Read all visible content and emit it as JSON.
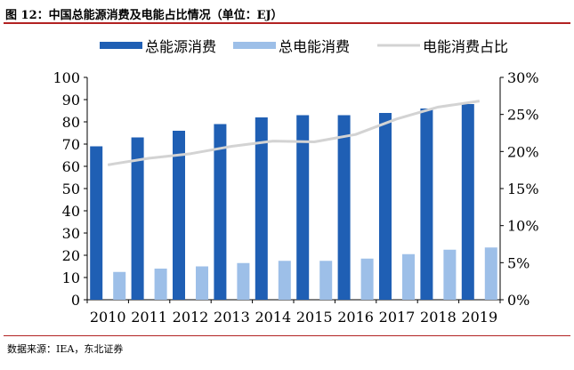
{
  "figure": {
    "title": "图 12：中国总能源消费及电能占比情况（单位：EJ）",
    "source": "数据来源：IEA，东北证券"
  },
  "chart_data": {
    "type": "bar",
    "categories": [
      "2010",
      "2011",
      "2012",
      "2013",
      "2014",
      "2015",
      "2016",
      "2017",
      "2018",
      "2019"
    ],
    "series": [
      {
        "name": "总能源消费",
        "type": "bar",
        "axis": "left",
        "color": "#1f5fb4",
        "values": [
          69,
          73,
          76,
          79,
          82,
          83,
          83,
          84,
          86,
          88
        ]
      },
      {
        "name": "总电能消费",
        "type": "bar",
        "axis": "left",
        "color": "#9dbfe8",
        "values": [
          12.5,
          14,
          15,
          16.5,
          17.5,
          17.5,
          18.5,
          20.5,
          22.5,
          23.5
        ]
      },
      {
        "name": "电能消费占比",
        "type": "line",
        "axis": "right",
        "color": "#d3d3d3",
        "values": [
          18.2,
          19.1,
          19.7,
          20.7,
          21.4,
          21.3,
          22.3,
          24.4,
          26.0,
          26.8
        ]
      }
    ],
    "y_left": {
      "min": 0,
      "max": 100,
      "ticks": [
        "0",
        "10",
        "20",
        "30",
        "40",
        "50",
        "60",
        "70",
        "80",
        "90",
        "100"
      ]
    },
    "y_right": {
      "min": 0,
      "max": 30,
      "ticks": [
        "0%",
        "5%",
        "10%",
        "15%",
        "20%",
        "25%",
        "30%"
      ]
    },
    "legend_position": "top",
    "grid": false
  }
}
